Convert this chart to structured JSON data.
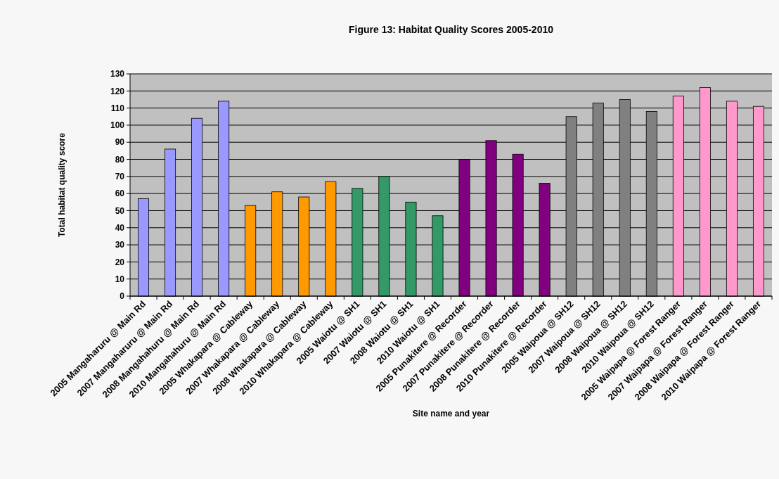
{
  "chart_data": {
    "type": "bar",
    "title": "Figure 13: Habitat Quality Scores 2005-2010",
    "xlabel": "Site name and year",
    "ylabel": "Total habitat quality score",
    "categories": [
      "2005 Mangaharuru @ Main Rd",
      "2007 Mangaharuru @ Main Rd",
      "2008 Mangahahuru @ Main Rd",
      "2010 Mangahahuru @ Main Rd",
      "2005 Whakapara @ Cableway",
      "2007 Whakapara @ Cableway",
      "2008 Whakapara @ Cableway",
      "2010 Whakapara @ Cableway",
      "2005 Waiotu @ SH1",
      "2007 Waiotu @ SH1",
      "2008 Waiotu @ SH1",
      "2010 Waiotu @ SH1",
      "2005 Punakitere @ Recorder",
      "2007 Punakitere @ Recorder",
      "2008 Punakitere @ Recorder",
      "2010 Punakitere @ Recorder",
      "2005 Waipoua @ SH12",
      "2007 Waipoua @ SH12",
      "2008 Waipoua @ SH12",
      "2010 Waipoua @ SH12",
      "2005 Waipapa @ Forest Ranger",
      "2007 Waipapa @ Forest Ranger",
      "2008 Waipapa @ Forest Ranger",
      "2010 Waipapa @ Forest Ranger"
    ],
    "values": [
      57,
      86,
      104,
      114,
      53,
      61,
      58,
      67,
      63,
      70,
      55,
      47,
      80,
      91,
      83,
      66,
      105,
      113,
      115,
      108,
      117,
      122,
      114,
      111
    ],
    "colors": [
      "#9999ff",
      "#9999ff",
      "#9999ff",
      "#9999ff",
      "#ff9900",
      "#ff9900",
      "#ff9900",
      "#ff9900",
      "#339966",
      "#339966",
      "#339966",
      "#339966",
      "#800080",
      "#800080",
      "#800080",
      "#800080",
      "#808080",
      "#808080",
      "#808080",
      "#808080",
      "#ff99cc",
      "#ff99cc",
      "#ff99cc",
      "#ff99cc"
    ],
    "ylim": [
      0,
      130
    ],
    "yticks": [
      0,
      10,
      20,
      30,
      40,
      50,
      60,
      70,
      80,
      90,
      100,
      110,
      120,
      130
    ],
    "grid": "y"
  }
}
